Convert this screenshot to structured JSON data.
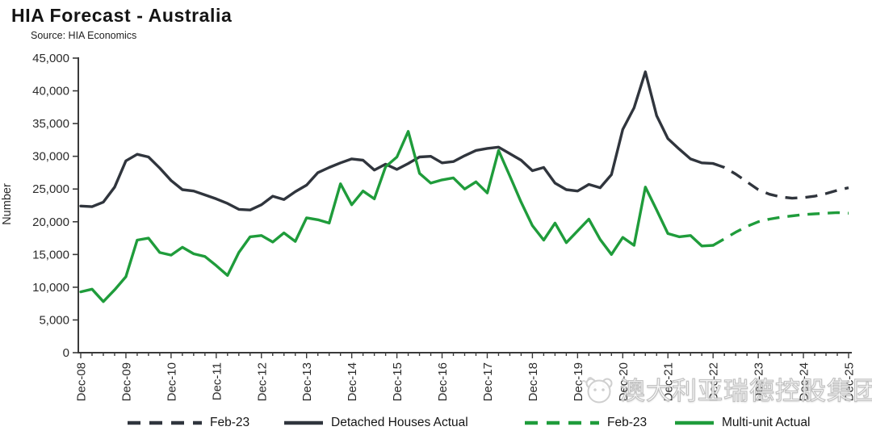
{
  "header": {
    "title": "HIA Forecast - Australia",
    "source": "Source: HIA Economics"
  },
  "watermark": {
    "text": "澳大利亚瑞德控股集团"
  },
  "legend": [
    {
      "label": "Feb-23",
      "color": "#30353d",
      "dashed": true
    },
    {
      "label": "Detached Houses Actual",
      "color": "#30353d",
      "dashed": false
    },
    {
      "label": "Feb-23",
      "color": "#1f9c3b",
      "dashed": true
    },
    {
      "label": "Multi-unit Actual",
      "color": "#1f9c3b",
      "dashed": false
    }
  ],
  "chart_data": {
    "type": "line",
    "title": "HIA Forecast - Australia",
    "source": "Source: HIA Economics",
    "ylabel": "Number",
    "ylim": [
      0,
      45000
    ],
    "ytick_step": 5000,
    "yticklabels": [
      "0",
      "5,000",
      "10,000",
      "15,000",
      "20,000",
      "25,000",
      "30,000",
      "35,000",
      "40,000",
      "45,000"
    ],
    "x_frequency": "quarterly",
    "xticklabels": [
      "Dec-08",
      "Dec-09",
      "Dec-10",
      "Dec-11",
      "Dec-12",
      "Dec-13",
      "Dec-14",
      "Dec-15",
      "Dec-16",
      "Dec-17",
      "Dec-18",
      "Dec-19",
      "Dec-20",
      "Dec-21",
      "Dec-22",
      "Dec-23",
      "Dec-24",
      "Dec-25"
    ],
    "grid": false,
    "legend_position": "bottom",
    "series": [
      {
        "name": "Detached Houses Actual",
        "style": "solid",
        "color": "#30353d",
        "start_quarter_index": 0,
        "start_label": "Dec-08",
        "end_label": "Dec-22",
        "values": [
          22400,
          22300,
          23000,
          25300,
          29300,
          30300,
          29900,
          28200,
          26300,
          24900,
          24700,
          24100,
          23500,
          22800,
          21900,
          21800,
          22600,
          23900,
          23400,
          24600,
          25600,
          27500,
          28300,
          29000,
          29600,
          29400,
          27900,
          28800,
          28000,
          28900,
          29900,
          30000,
          29000,
          29200,
          30100,
          30900,
          31200,
          31400,
          30400,
          29400,
          27800,
          28300,
          25900,
          24900,
          24700,
          25700,
          25200,
          27200,
          34100,
          37400,
          42900,
          36200,
          32700,
          31100,
          29600,
          29000,
          28900
        ]
      },
      {
        "name": "Feb-23",
        "style": "dashed",
        "color": "#30353d",
        "start_quarter_index": 56,
        "start_label": "Dec-22",
        "end_label": "Dec-25",
        "values": [
          28900,
          28300,
          27300,
          26100,
          24900,
          24200,
          23800,
          23600,
          23700,
          23900,
          24300,
          24800,
          25200
        ]
      },
      {
        "name": "Multi-unit Actual",
        "style": "solid",
        "color": "#1f9c3b",
        "start_quarter_index": 0,
        "start_label": "Dec-08",
        "end_label": "Dec-22",
        "values": [
          9300,
          9700,
          7800,
          9600,
          11600,
          17200,
          17500,
          15300,
          14900,
          16100,
          15100,
          14700,
          13300,
          11800,
          15300,
          17700,
          17900,
          16900,
          18300,
          17000,
          20600,
          20300,
          19800,
          25800,
          22600,
          24700,
          23500,
          28400,
          29900,
          33800,
          27400,
          25900,
          26400,
          26700,
          25000,
          26100,
          24400,
          30900,
          27000,
          23000,
          19400,
          17200,
          19800,
          16800,
          18600,
          20400,
          17300,
          15000,
          17600,
          16400,
          25300,
          21800,
          18200,
          17700,
          17900,
          16300,
          16400
        ]
      },
      {
        "name": "Feb-23",
        "style": "dashed",
        "color": "#1f9c3b",
        "start_quarter_index": 56,
        "start_label": "Dec-22",
        "end_label": "Dec-25",
        "values": [
          16400,
          17400,
          18400,
          19300,
          20000,
          20400,
          20700,
          20900,
          21100,
          21200,
          21300,
          21400,
          21300
        ]
      }
    ]
  },
  "colors": {
    "axis": "#3a3a3a",
    "tick_label": "#2b2b2b",
    "detached": "#30353d",
    "multi_unit": "#1f9c3b",
    "watermark_outline": "#bfbfbf"
  }
}
